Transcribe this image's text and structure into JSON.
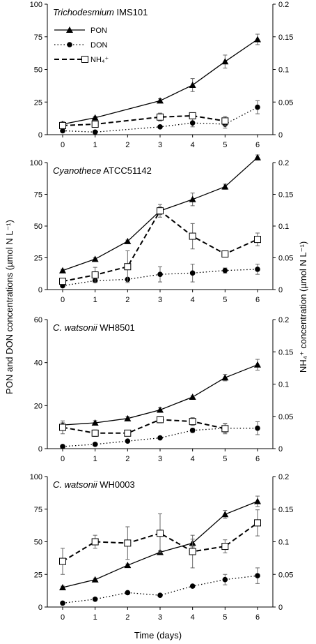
{
  "figure": {
    "ylabel_left": "PON and DON concentrations (µmol N L⁻¹)",
    "ylabel_right": "NH₄⁺ concentration (µmol N L⁻¹)",
    "xlabel": "Time (days)"
  },
  "legend": [
    {
      "label": "PON",
      "marker": "triangle",
      "line": "solid"
    },
    {
      "label": "DON",
      "marker": "circle",
      "line": "dotted"
    },
    {
      "label": "NH₄⁺",
      "marker": "open-square",
      "line": "dashed"
    }
  ],
  "chart_data": [
    {
      "type": "line",
      "title_species": "Trichodesmium",
      "title_strain": "IMS101",
      "x": [
        0,
        1,
        2,
        3,
        4,
        5,
        6
      ],
      "xticks": [
        "0",
        "1",
        "2",
        "3",
        "4",
        "5",
        "6"
      ],
      "ylim_left": [
        0,
        100
      ],
      "yticks_left": [
        "0",
        "25",
        "50",
        "75",
        "100"
      ],
      "ylim_right": [
        0,
        0.2
      ],
      "yticks_right": [
        "0",
        "0.05",
        "0.1",
        "0.15",
        "0.2"
      ],
      "series": [
        {
          "name": "PON",
          "axis": "left",
          "values": [
            8,
            13,
            null,
            26,
            38,
            56,
            73
          ],
          "err": [
            2,
            1,
            null,
            1.5,
            5,
            5,
            4
          ]
        },
        {
          "name": "DON",
          "axis": "left",
          "values": [
            3,
            2,
            null,
            6,
            9,
            8,
            21
          ],
          "err": [
            1,
            1,
            null,
            1,
            3,
            3,
            5
          ]
        },
        {
          "name": "NH₄⁺",
          "axis": "right",
          "values": [
            0.014,
            0.016,
            null,
            0.027,
            0.029,
            0.021,
            null
          ],
          "err": [
            0.004,
            0.004,
            null,
            0.006,
            0.004,
            0.007,
            null
          ]
        }
      ]
    },
    {
      "type": "line",
      "title_species": "Cyanothece",
      "title_strain": "ATCC51142",
      "x": [
        0,
        1,
        2,
        3,
        4,
        5,
        6
      ],
      "xticks": [
        "0",
        "1",
        "2",
        "3",
        "4",
        "5",
        "6"
      ],
      "ylim_left": [
        0,
        100
      ],
      "yticks_left": [
        "0",
        "25",
        "50",
        "75",
        "100"
      ],
      "ylim_right": [
        0,
        0.2
      ],
      "yticks_right": [
        "0",
        "0.05",
        "0.1",
        "0.15",
        "0.2"
      ],
      "series": [
        {
          "name": "PON",
          "axis": "left",
          "values": [
            15,
            24,
            38,
            62,
            71,
            81,
            104
          ],
          "err": [
            1,
            1,
            1,
            5,
            5,
            2,
            2
          ]
        },
        {
          "name": "DON",
          "axis": "left",
          "values": [
            3,
            7,
            8,
            12,
            13,
            15,
            16
          ],
          "err": [
            1,
            1,
            1,
            6,
            7,
            2,
            4
          ]
        },
        {
          "name": "NH₄⁺",
          "axis": "right",
          "values": [
            0.013,
            0.023,
            0.036,
            0.124,
            0.084,
            0.056,
            0.079
          ],
          "err": [
            0.003,
            0.012,
            0.025,
            0.006,
            0.02,
            0.004,
            0.01
          ]
        }
      ]
    },
    {
      "type": "line",
      "title_species": "C. watsonii",
      "title_strain": "WH8501",
      "x": [
        0,
        1,
        2,
        3,
        4,
        5,
        6
      ],
      "xticks": [
        "0",
        "1",
        "2",
        "3",
        "4",
        "5",
        "6"
      ],
      "ylim_left": [
        0,
        60
      ],
      "yticks_left": [
        "0",
        "20",
        "40",
        "60"
      ],
      "ylim_right": [
        0,
        0.2
      ],
      "yticks_right": [
        "0",
        "0.05",
        "0.1",
        "0.15",
        "0.2"
      ],
      "series": [
        {
          "name": "PON",
          "axis": "left",
          "values": [
            11,
            12,
            14,
            18,
            24,
            33,
            39
          ],
          "err": [
            1,
            1,
            1,
            1,
            0.5,
            1.5,
            2.5
          ]
        },
        {
          "name": "DON",
          "axis": "left",
          "values": [
            1,
            2,
            3.5,
            5,
            8.5,
            9.5,
            9.5
          ],
          "err": [
            0.5,
            0.5,
            0.5,
            0.5,
            1,
            2,
            3
          ]
        },
        {
          "name": "NH₄⁺",
          "axis": "right",
          "values": [
            0.033,
            0.024,
            0.024,
            0.045,
            0.042,
            0.031,
            null
          ],
          "err": [
            0.01,
            0.005,
            0.003,
            0.005,
            0.006,
            0.008,
            null
          ]
        }
      ]
    },
    {
      "type": "line",
      "title_species": "C. watsonii",
      "title_strain": "WH0003",
      "x": [
        0,
        1,
        2,
        3,
        4,
        5,
        6
      ],
      "xticks": [
        "0",
        "1",
        "2",
        "3",
        "4",
        "5",
        "6"
      ],
      "ylim_left": [
        0,
        100
      ],
      "yticks_left": [
        "0",
        "25",
        "50",
        "75",
        "100"
      ],
      "ylim_right": [
        0,
        0.2
      ],
      "yticks_right": [
        "0",
        "0.05",
        "0.1",
        "0.15",
        "0.2"
      ],
      "series": [
        {
          "name": "PON",
          "axis": "left",
          "values": [
            15,
            21,
            32,
            42,
            49,
            71,
            81
          ],
          "err": [
            1,
            1,
            1,
            1,
            3,
            3,
            4
          ]
        },
        {
          "name": "DON",
          "axis": "left",
          "values": [
            3,
            6,
            11,
            9,
            16,
            21,
            24
          ],
          "err": [
            0.5,
            1,
            1,
            1,
            1,
            4,
            6
          ]
        },
        {
          "name": "NH₄⁺",
          "axis": "right",
          "values": [
            0.07,
            0.1,
            0.098,
            0.113,
            0.085,
            0.093,
            0.129
          ],
          "err": [
            0.02,
            0.01,
            0.025,
            0.03,
            0.025,
            0.01,
            0.02
          ]
        }
      ]
    }
  ]
}
